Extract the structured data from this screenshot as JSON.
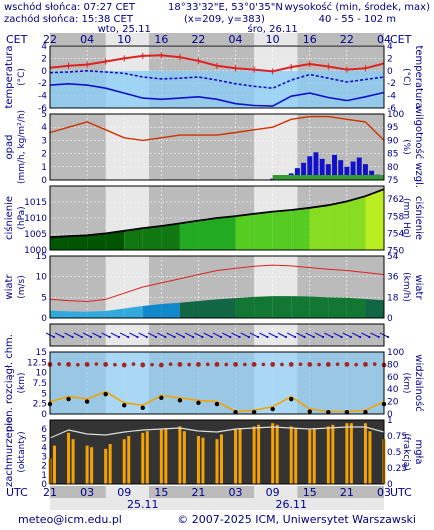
{
  "header": {
    "sunrise": "wschód słońca: 07:27 CET",
    "sunset": "zachód słońca: 15:38 CET",
    "coords": "18°33'32\"E, 53°0'35\"N",
    "grid": "(x=209, y=383)",
    "elev_label": "wysokość (min, środek, max)",
    "elev_values": "40 - 55 - 102 m"
  },
  "timeline": {
    "tz_left": "CET",
    "tz_right": "CET",
    "utc_left": "UTC",
    "utc_right": "UTC",
    "days_top": [
      "wto, 25.11",
      "śro, 26.11"
    ],
    "hours_top": [
      "22",
      "04",
      "10",
      "16",
      "22",
      "04",
      "10",
      "16",
      "22",
      "04"
    ],
    "hours_bottom": [
      "21",
      "03",
      "09",
      "15",
      "21",
      "03",
      "09",
      "15",
      "21",
      "03"
    ],
    "days_bottom": [
      "25.11",
      "26.11"
    ]
  },
  "panels": {
    "temperature": {
      "left": "temperatura",
      "unit_l": "(°C)",
      "right": "temperatura",
      "unit_r": "(°C)"
    },
    "precip": {
      "left": "opad",
      "unit_l": "(mm/h, kg/m²/h)",
      "right": "wilgotność wzgl.",
      "unit_r": "(%)"
    },
    "pressure": {
      "left": "ciśnienie",
      "unit_l": "(hPa)",
      "right": "ciśnienie",
      "unit_r": "(mm Hg)"
    },
    "wind": {
      "left": "wiatr",
      "unit_l": "(m/s)",
      "right": "wiatr",
      "unit_r": "(km/h)"
    },
    "visibility": {
      "left": "pion. rozciągł. chm.",
      "unit_l": "(km)",
      "right": "widzialność",
      "unit_r": "(km)"
    },
    "clouds": {
      "left": "zachmurzenie",
      "unit_l": "(oktanty)",
      "right": "mgła",
      "unit_r": "(frakcja)"
    }
  },
  "footer": {
    "email": "meteo@icm.edu.pl",
    "copyright": "© 2007-2025 ICM, Uniwersytet Warszawski"
  },
  "colors": {
    "axis": "#00008b",
    "night": "#bbbbbb",
    "day": "#e8e8e8",
    "sky": "#87cefa",
    "red": "#dd2222",
    "blue": "#1111cc",
    "yellow": "#f4a300"
  },
  "chart_data": [
    {
      "type": "line",
      "title": "temperatura",
      "ylim": [
        -6,
        4
      ],
      "left_ticks": [
        4,
        2,
        0,
        -2,
        -4,
        -6
      ],
      "right_ticks": [
        4,
        2,
        0,
        -2,
        -4,
        -6
      ],
      "x": [
        0,
        3,
        6,
        9,
        12,
        15,
        18,
        21,
        24,
        27,
        30,
        33,
        36,
        39,
        42,
        45,
        48,
        51,
        54
      ],
      "series": [
        {
          "values": [
            0.5,
            0.8,
            1.0,
            1.5,
            2.0,
            2.4,
            2.5,
            2.2,
            1.6,
            0.8,
            0.4,
            0.2,
            -0.1,
            0.6,
            1.1,
            0.7,
            0.2,
            0.4,
            1.2
          ]
        },
        {
          "values": [
            -0.3,
            -0.2,
            0.0,
            -0.2,
            -0.4,
            -1.0,
            -1.3,
            -1.2,
            -1.0,
            -1.5,
            -2.1,
            -2.5,
            -2.8,
            -1.5,
            -0.6,
            -1.2,
            -1.8,
            -1.4,
            -1.0
          ]
        },
        {
          "values": [
            -2.3,
            -2.1,
            -2.3,
            -2.8,
            -3.6,
            -4.4,
            -4.6,
            -4.4,
            -4.2,
            -4.6,
            -5.3,
            -5.6,
            -5.7,
            -4.1,
            -3.6,
            -4.3,
            -4.8,
            -4.2,
            -3.5
          ]
        }
      ]
    },
    {
      "type": "bar",
      "title": "opad",
      "ylim": [
        0,
        5
      ],
      "left_ticks": [
        0,
        1,
        2,
        3,
        4,
        5
      ],
      "right_ticks": [
        100,
        95,
        90,
        85,
        80,
        75
      ],
      "x": [
        36,
        37,
        38,
        39,
        40,
        41,
        42,
        43,
        44,
        45,
        46,
        47,
        48,
        49,
        50,
        51,
        52,
        53
      ],
      "values": [
        0.1,
        0.2,
        0.3,
        0.5,
        0.9,
        1.3,
        1.8,
        2.1,
        1.6,
        1.2,
        1.9,
        1.5,
        1.0,
        1.4,
        1.7,
        1.2,
        0.7,
        0.4
      ],
      "humidity_x": [
        0,
        3,
        6,
        9,
        12,
        15,
        18,
        21,
        24,
        27,
        30,
        33,
        36,
        39,
        42,
        45,
        48,
        51,
        54
      ],
      "humidity": [
        93,
        95,
        97,
        94,
        91,
        90,
        91,
        92,
        92,
        92,
        93,
        94,
        95,
        98,
        99,
        99,
        98,
        97,
        90
      ]
    },
    {
      "type": "area",
      "title": "ciśnienie",
      "ylim": [
        1000,
        1020
      ],
      "left_ticks": [
        1000,
        1005,
        1010,
        1015
      ],
      "right_ticks": [
        750,
        754,
        758,
        762
      ],
      "x": [
        0,
        3,
        6,
        9,
        12,
        15,
        18,
        21,
        24,
        27,
        30,
        33,
        36,
        39,
        42,
        45,
        48,
        51,
        54
      ],
      "values": [
        1004.0,
        1004.3,
        1004.6,
        1005.2,
        1006.0,
        1006.8,
        1007.5,
        1008.3,
        1009.2,
        1010.0,
        1010.6,
        1011.3,
        1012.0,
        1012.5,
        1013.2,
        1014.0,
        1015.2,
        1016.8,
        1019.0
      ]
    },
    {
      "type": "line",
      "title": "wiatr",
      "ylim": [
        0,
        15
      ],
      "left_ticks": [
        0,
        5,
        10,
        15
      ],
      "right_ticks": [
        0,
        18,
        36,
        54
      ],
      "x": [
        0,
        3,
        6,
        9,
        12,
        15,
        18,
        21,
        24,
        27,
        30,
        33,
        36,
        39,
        42,
        45,
        48,
        51,
        54
      ],
      "series": [
        {
          "values": [
            4.5,
            4.2,
            4.0,
            4.5,
            6.0,
            7.5,
            8.5,
            9.5,
            10.5,
            11.5,
            12.0,
            12.5,
            12.8,
            12.6,
            12.2,
            11.8,
            11.5,
            11.0,
            10.5
          ]
        },
        {
          "values": [
            1.8,
            1.6,
            1.5,
            1.7,
            2.3,
            2.9,
            3.4,
            3.7,
            4.1,
            4.5,
            4.8,
            5.1,
            5.3,
            5.3,
            5.2,
            5.0,
            4.9,
            4.6,
            4.3
          ]
        }
      ]
    },
    {
      "type": "line",
      "title": "widzialność",
      "ylim": [
        0,
        15
      ],
      "left_ticks": [
        0,
        2.5,
        5,
        7.5,
        10,
        12.5,
        15
      ],
      "right_ticks": [
        0,
        20,
        40,
        60,
        80,
        100
      ],
      "x": [
        0,
        3,
        6,
        9,
        12,
        15,
        18,
        21,
        24,
        27,
        30,
        33,
        36,
        39,
        42,
        45,
        48,
        51,
        54
      ],
      "series": [
        {
          "values": [
            80,
            80,
            80,
            80,
            79,
            79,
            79,
            80,
            80,
            80,
            80,
            80,
            80,
            80,
            80,
            80,
            80,
            80,
            79
          ]
        },
        {
          "values": [
            20,
            28,
            24,
            36,
            18,
            14,
            30,
            26,
            22,
            20,
            4,
            6,
            12,
            28,
            8,
            4,
            4,
            6,
            20
          ]
        }
      ]
    },
    {
      "type": "bar",
      "title": "zachmurzenie",
      "ylim": [
        0,
        8
      ],
      "left_ticks": [
        0,
        1,
        2,
        3,
        4,
        5,
        6
      ],
      "right_ticks": [
        0,
        0.25,
        0.5,
        0.75,
        1
      ],
      "x": [
        0,
        3,
        6,
        9,
        12,
        15,
        18,
        21,
        24,
        27,
        30,
        33,
        36,
        39,
        42,
        45,
        48,
        51,
        54
      ],
      "values": [
        0.4,
        0.8,
        0.6,
        0.55,
        0.7,
        0.8,
        0.85,
        0.9,
        0.75,
        0.7,
        0.85,
        0.9,
        0.95,
        0.9,
        0.85,
        0.9,
        0.95,
        0.95,
        0.7
      ]
    }
  ]
}
